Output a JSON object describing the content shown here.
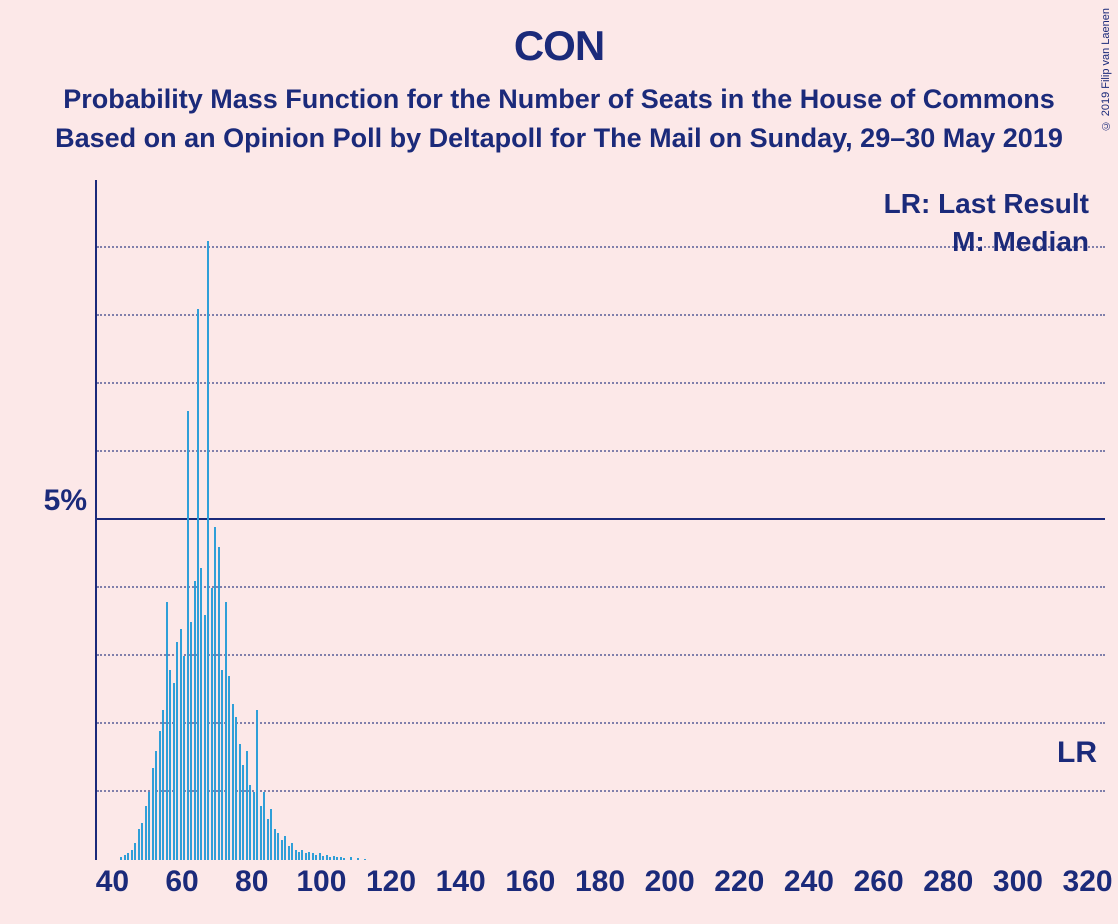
{
  "title": "CON",
  "subtitle1": "Probability Mass Function for the Number of Seats in the House of Commons",
  "subtitle2": "Based on an Opinion Poll by Deltapoll for The Mail on Sunday, 29–30 May 2019",
  "copyright": "© 2019 Filip van Laenen",
  "legend_lr": "LR: Last Result",
  "legend_m": "M: Median",
  "lr_label": "LR",
  "chart": {
    "type": "bar",
    "background_color": "#fce8e8",
    "text_color": "#1b2a7a",
    "bar_color": "#2f9fd8",
    "grid_color": "#1b2a7a",
    "title_fontsize": 42,
    "subtitle_fontsize": 27,
    "axis_label_fontsize": 30,
    "legend_fontsize": 28,
    "xlim": [
      35,
      325
    ],
    "ylim": [
      0,
      10
    ],
    "y_major": 5,
    "y_minor_step": 1,
    "y_label_major": "5%",
    "xticks": [
      40,
      60,
      80,
      100,
      120,
      140,
      160,
      180,
      200,
      220,
      240,
      260,
      280,
      300,
      320
    ],
    "lr_y": 1.3,
    "bars": [
      {
        "x": 42,
        "y": 0.05
      },
      {
        "x": 43,
        "y": 0.08
      },
      {
        "x": 44,
        "y": 0.1
      },
      {
        "x": 45,
        "y": 0.15
      },
      {
        "x": 46,
        "y": 0.25
      },
      {
        "x": 47,
        "y": 0.45
      },
      {
        "x": 48,
        "y": 0.55
      },
      {
        "x": 49,
        "y": 0.8
      },
      {
        "x": 50,
        "y": 1.0
      },
      {
        "x": 51,
        "y": 1.35
      },
      {
        "x": 52,
        "y": 1.6
      },
      {
        "x": 53,
        "y": 1.9
      },
      {
        "x": 54,
        "y": 2.2
      },
      {
        "x": 55,
        "y": 3.8
      },
      {
        "x": 56,
        "y": 2.8
      },
      {
        "x": 57,
        "y": 2.6
      },
      {
        "x": 58,
        "y": 3.2
      },
      {
        "x": 59,
        "y": 3.4
      },
      {
        "x": 60,
        "y": 3.0
      },
      {
        "x": 61,
        "y": 6.6
      },
      {
        "x": 62,
        "y": 3.5
      },
      {
        "x": 63,
        "y": 4.1
      },
      {
        "x": 64,
        "y": 8.1
      },
      {
        "x": 65,
        "y": 4.3
      },
      {
        "x": 66,
        "y": 3.6
      },
      {
        "x": 67,
        "y": 9.1
      },
      {
        "x": 68,
        "y": 4.0
      },
      {
        "x": 69,
        "y": 4.9
      },
      {
        "x": 70,
        "y": 4.6
      },
      {
        "x": 71,
        "y": 2.8
      },
      {
        "x": 72,
        "y": 3.8
      },
      {
        "x": 73,
        "y": 2.7
      },
      {
        "x": 74,
        "y": 2.3
      },
      {
        "x": 75,
        "y": 2.1
      },
      {
        "x": 76,
        "y": 1.7
      },
      {
        "x": 77,
        "y": 1.4
      },
      {
        "x": 78,
        "y": 1.6
      },
      {
        "x": 79,
        "y": 1.1
      },
      {
        "x": 80,
        "y": 1.0
      },
      {
        "x": 81,
        "y": 2.2
      },
      {
        "x": 82,
        "y": 0.8
      },
      {
        "x": 83,
        "y": 1.0
      },
      {
        "x": 84,
        "y": 0.6
      },
      {
        "x": 85,
        "y": 0.75
      },
      {
        "x": 86,
        "y": 0.45
      },
      {
        "x": 87,
        "y": 0.4
      },
      {
        "x": 88,
        "y": 0.3
      },
      {
        "x": 89,
        "y": 0.35
      },
      {
        "x": 90,
        "y": 0.2
      },
      {
        "x": 91,
        "y": 0.25
      },
      {
        "x": 92,
        "y": 0.15
      },
      {
        "x": 93,
        "y": 0.12
      },
      {
        "x": 94,
        "y": 0.15
      },
      {
        "x": 95,
        "y": 0.1
      },
      {
        "x": 96,
        "y": 0.12
      },
      {
        "x": 97,
        "y": 0.1
      },
      {
        "x": 98,
        "y": 0.08
      },
      {
        "x": 99,
        "y": 0.1
      },
      {
        "x": 100,
        "y": 0.06
      },
      {
        "x": 101,
        "y": 0.08
      },
      {
        "x": 102,
        "y": 0.05
      },
      {
        "x": 103,
        "y": 0.06
      },
      {
        "x": 104,
        "y": 0.04
      },
      {
        "x": 105,
        "y": 0.05
      },
      {
        "x": 106,
        "y": 0.03
      },
      {
        "x": 108,
        "y": 0.04
      },
      {
        "x": 110,
        "y": 0.03
      },
      {
        "x": 112,
        "y": 0.02
      }
    ]
  }
}
